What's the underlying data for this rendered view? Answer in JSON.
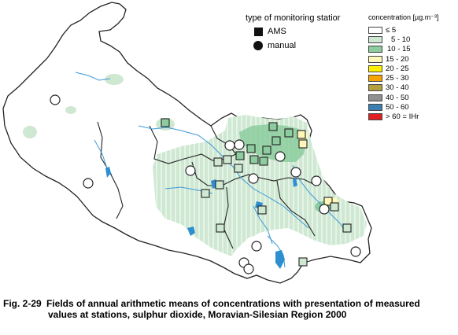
{
  "station_legend": {
    "title": "type of monitoring statior",
    "items": [
      {
        "label": "AMS",
        "symbol": "square"
      },
      {
        "label": "manual",
        "symbol": "circle"
      }
    ]
  },
  "concentration_legend": {
    "title": "concentration [µg.m⁻³]",
    "classes": [
      {
        "label": "≤ 5",
        "color": "#ffffff"
      },
      {
        "label": "5 - 10",
        "color": "#cfe8d2"
      },
      {
        "label": "10 - 15",
        "color": "#8ccc9e"
      },
      {
        "label": "15 - 20",
        "color": "#fff8b8"
      },
      {
        "label": "20 - 25",
        "color": "#fff000"
      },
      {
        "label": "25 - 30",
        "color": "#f5a400"
      },
      {
        "label": "30 - 40",
        "color": "#b5a040"
      },
      {
        "label": "40 - 50",
        "color": "#909090"
      },
      {
        "label": "50 - 60",
        "color": "#3a7fb0"
      },
      {
        "label": "> 60 = IHr",
        "color": "#e02020"
      }
    ]
  },
  "caption": {
    "number": "Fig. 2-29",
    "line1": "Fields of annual arithmetic means of concentrations with presentation of measured",
    "line2": "values at stations, sulphur dioxide, Moravian-Silesian Region 2000"
  },
  "colors": {
    "border": "#222222",
    "river": "#3a9ad9",
    "lake": "#2e8fd0"
  }
}
